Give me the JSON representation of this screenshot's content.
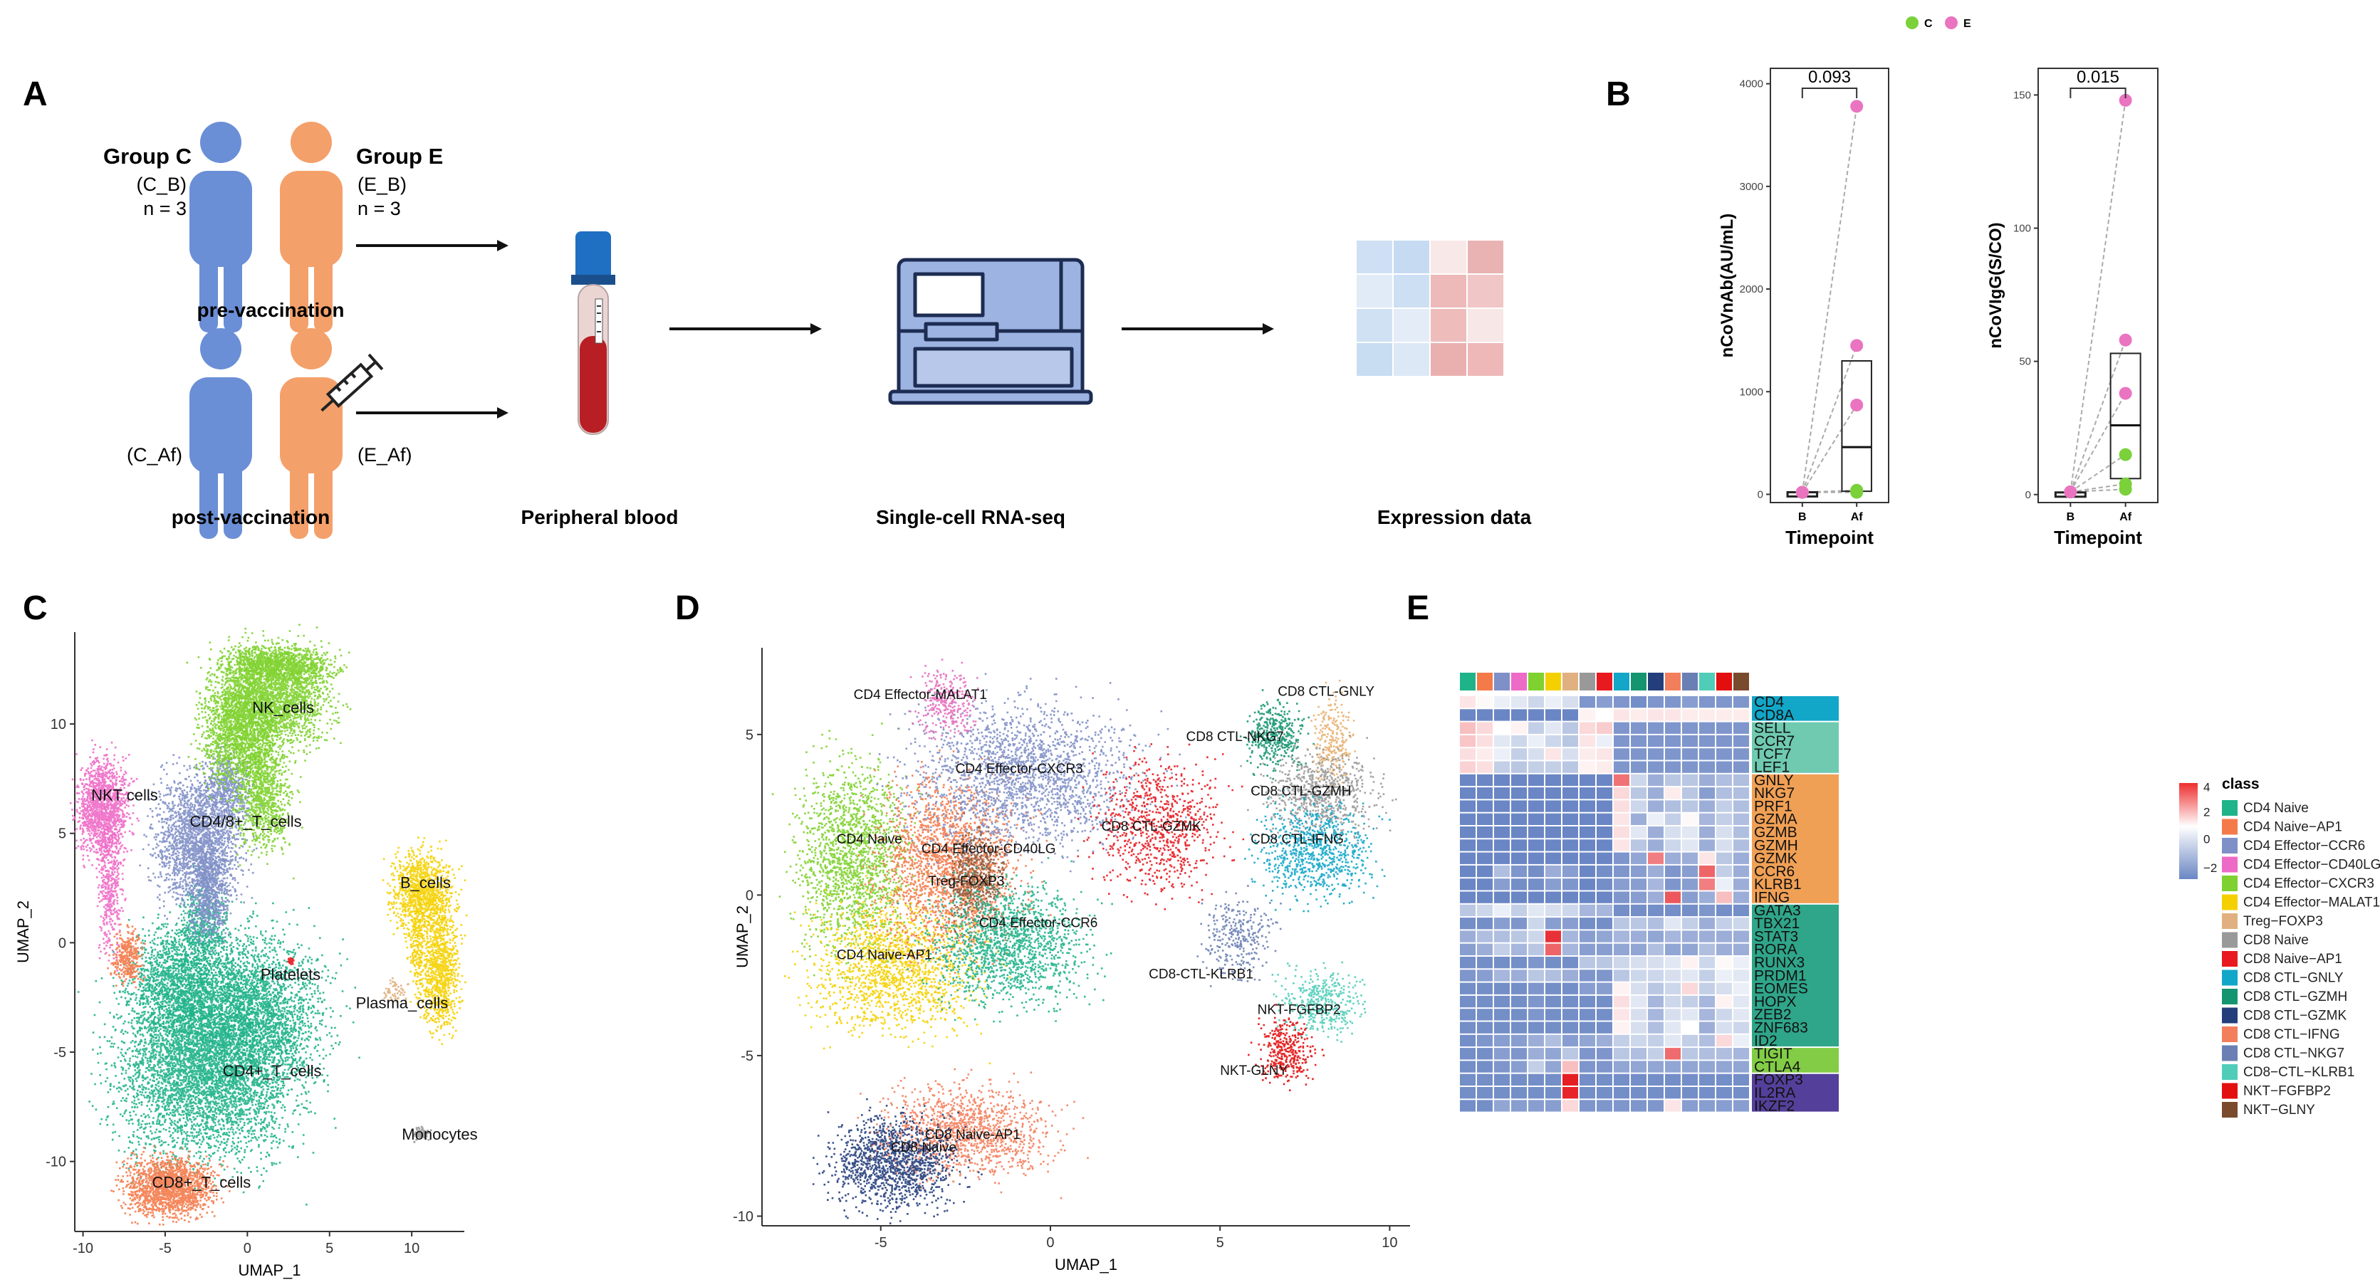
{
  "panels": {
    "A": {
      "label": "A",
      "group_c_title": "Group C",
      "group_c_code": "(C_B)",
      "group_c_n": "n = 3",
      "group_e_title": "Group E",
      "group_e_code": "(E_B)",
      "group_e_n": "n = 3",
      "pre_label": "pre-vaccination",
      "c_af": "(C_Af)",
      "e_af": "(E_Af)",
      "post_label": "post-vaccination",
      "blood_label": "Peripheral blood",
      "seq_label": "Single-cell RNA-seq",
      "expr_label": "Expression data"
    },
    "B": {
      "label": "B",
      "legend_items": [
        "C",
        "E"
      ],
      "xlabel": "Timepoint"
    },
    "C": {
      "label": "C"
    },
    "D": {
      "label": "D"
    },
    "E": {
      "label": "E"
    }
  },
  "colors": {
    "person_c": "#6b8fd6",
    "person_e": "#f4a06a",
    "group_c": "#7ad13a",
    "group_e": "#ea74c0",
    "box": "#222222"
  },
  "chart_data": [
    {
      "id": "B1",
      "type": "box-paired",
      "ylabel": "nCoVnAb(AU/mL)",
      "xlabel": "Timepoint",
      "categories": [
        "B",
        "Af"
      ],
      "ylim": [
        -80,
        4150
      ],
      "yticks": [
        0,
        1000,
        2000,
        3000,
        4000
      ],
      "pvalue": "0.093",
      "series": [
        {
          "name": "C",
          "values_B": [
            20,
            20,
            20
          ],
          "values_Af": [
            30,
            20,
            40
          ]
        },
        {
          "name": "E",
          "values_B": [
            20,
            20,
            20
          ],
          "values_Af": [
            3780,
            1450,
            870
          ]
        }
      ],
      "box_Af": {
        "q1": 30,
        "median": 460,
        "q3": 1300
      }
    },
    {
      "id": "B2",
      "type": "box-paired",
      "ylabel": "nCoVIgG(S/CO)",
      "xlabel": "Timepoint",
      "categories": [
        "B",
        "Af"
      ],
      "ylim": [
        -3,
        160
      ],
      "yticks": [
        0,
        50,
        100,
        150
      ],
      "pvalue": "0.015",
      "series": [
        {
          "name": "C",
          "values_B": [
            1,
            1,
            1
          ],
          "values_Af": [
            15,
            4,
            2
          ]
        },
        {
          "name": "E",
          "values_B": [
            1,
            1,
            1
          ],
          "values_Af": [
            148,
            58,
            38
          ]
        }
      ],
      "box_Af": {
        "q1": 6,
        "median": 26,
        "q3": 53
      }
    },
    {
      "id": "C",
      "type": "scatter-umap",
      "xlabel": "UMAP_1",
      "ylabel": "UMAP_2",
      "xlim": [
        -10.5,
        13.2
      ],
      "ylim": [
        -13.2,
        14.2
      ],
      "xticks": [
        -10,
        -5,
        0,
        5,
        10
      ],
      "yticks": [
        -10,
        -5,
        0,
        5,
        10
      ],
      "clusters": [
        {
          "name": "CD4+_T_cells",
          "color": "#1fb38a",
          "label_x": -1.5,
          "label_y": -6.1
        },
        {
          "name": "CD4/8+_T_cells",
          "color": "#7f8fc7",
          "label_x": -3.5,
          "label_y": 5.3
        },
        {
          "name": "NK_cells",
          "color": "#7ed12e",
          "label_x": 0.3,
          "label_y": 10.5
        },
        {
          "name": "NKT cells",
          "color": "#ee6ac7",
          "label_x": -9.5,
          "label_y": 6.5
        },
        {
          "name": "CD8+_T_cells",
          "color": "#f47a4a",
          "label_x": -5.8,
          "label_y": -11.2
        },
        {
          "name": "B_cells",
          "color": "#f5d000",
          "label_x": 9.3,
          "label_y": 2.5
        },
        {
          "name": "Plasma_cells",
          "color": "#e0b080",
          "label_x": 6.6,
          "label_y": -3.0
        },
        {
          "name": "Platelets",
          "color": "#e8191f",
          "label_x": 0.8,
          "label_y": -1.7
        },
        {
          "name": "Monocytes",
          "color": "#999999",
          "label_x": 9.4,
          "label_y": -9.0
        }
      ]
    },
    {
      "id": "D",
      "type": "scatter-umap",
      "xlabel": "UMAP_1",
      "ylabel": "UMAP_2",
      "xlim": [
        -8.5,
        10.6
      ],
      "ylim": [
        -10.3,
        7.7
      ],
      "xticks": [
        -5,
        0,
        5,
        10
      ],
      "yticks": [
        -10,
        -5,
        0,
        5
      ],
      "clusters": [
        {
          "name": "CD4 Effector-MALAT1",
          "color": "#e56fbc",
          "label_x": -5.8,
          "label_y": 6.1
        },
        {
          "name": "CD4 Effector-CXCR3",
          "color": "#7f8fc7",
          "label_x": -2.8,
          "label_y": 3.8
        },
        {
          "name": "CD4 Naive",
          "color": "#7ed12e",
          "label_x": -6.3,
          "label_y": 1.6
        },
        {
          "name": "CD4 Effector-CD40LG",
          "color": "#f47a4a",
          "label_x": -3.8,
          "label_y": 1.3
        },
        {
          "name": "Treg-FOXP3",
          "color": "#8b5a3c",
          "label_x": -3.6,
          "label_y": 0.3
        },
        {
          "name": "CD4 Effector-CCR6",
          "color": "#1fb38a",
          "label_x": -2.1,
          "label_y": -1.0
        },
        {
          "name": "CD4 Naive-AP1",
          "color": "#f5d000",
          "label_x": -6.3,
          "label_y": -2.0
        },
        {
          "name": "CD8 CTL-GNLY",
          "color": "#e8b070",
          "label_x": 6.7,
          "label_y": 6.2
        },
        {
          "name": "CD8 CTL-NKG7",
          "color": "#14956f",
          "label_x": 4.0,
          "label_y": 4.8
        },
        {
          "name": "CD8 CTL-GZMH",
          "color": "#999999",
          "label_x": 5.9,
          "label_y": 3.1
        },
        {
          "name": "CD8 CTL-GZMK",
          "color": "#e8191f",
          "label_x": 1.5,
          "label_y": 2.0
        },
        {
          "name": "CD8 CTL-IFNG",
          "color": "#12a6c8",
          "label_x": 5.9,
          "label_y": 1.6
        },
        {
          "name": "CD8-CTL-KLRB1",
          "color": "#6a7fb3",
          "label_x": 2.9,
          "label_y": -2.6
        },
        {
          "name": "NKT-FGFBP2",
          "color": "#4fcdb8",
          "label_x": 6.1,
          "label_y": -3.7
        },
        {
          "name": "NKT-GLNY",
          "color": "#e30e0e",
          "label_x": 5.0,
          "label_y": -5.6
        },
        {
          "name": "CD8 Naive-AP1",
          "color": "#f37e5c",
          "label_x": -3.7,
          "label_y": -7.6
        },
        {
          "name": "CD8 Naive",
          "color": "#243e7c",
          "label_x": -4.7,
          "label_y": -8.0
        }
      ]
    },
    {
      "id": "E",
      "type": "heatmap",
      "colorbar_ticks": [
        "4",
        "2",
        "0",
        "−2"
      ],
      "legend_title": "class",
      "genes": [
        "CD4",
        "CD8A",
        "SELL",
        "CCR7",
        "TCF7",
        "LEF1",
        "GNLY",
        "NKG7",
        "PRF1",
        "GZMA",
        "GZMB",
        "GZMH",
        "GZMK",
        "CCR6",
        "KLRB1",
        "IFNG",
        "GATA3",
        "TBX21",
        "STAT3",
        "RORA",
        "RUNX3",
        "PRDM1",
        "EOMES",
        "HOPX",
        "ZEB2",
        "ZNF683",
        "ID2",
        "TIGIT",
        "CTLA4",
        "FOXP3",
        "IL2RA",
        "IKZF2"
      ],
      "gene_groups": [
        {
          "rows": [
            0,
            1
          ],
          "color": "#12a6c8"
        },
        {
          "rows": [
            2,
            3,
            4,
            5
          ],
          "color": "#6fcab0"
        },
        {
          "rows": [
            6,
            7,
            8,
            9,
            10,
            11,
            12,
            13,
            14,
            15
          ],
          "color": "#f0a055"
        },
        {
          "rows": [
            16,
            17,
            18,
            19,
            20,
            21,
            22,
            23,
            24,
            25,
            26
          ],
          "color": "#2fa589"
        },
        {
          "rows": [
            27,
            28
          ],
          "color": "#82cd45"
        },
        {
          "rows": [
            29,
            30,
            31
          ],
          "color": "#54409a"
        }
      ],
      "classes": [
        {
          "name": "CD4 Naive",
          "color": "#1fb38a"
        },
        {
          "name": "CD4 Naive−AP1",
          "color": "#f47a4a"
        },
        {
          "name": "CD4 Effector−CCR6",
          "color": "#7f8fc7"
        },
        {
          "name": "CD4 Effector−CD40LG",
          "color": "#ee6ac7"
        },
        {
          "name": "CD4 Effector−CXCR3",
          "color": "#7ed12e"
        },
        {
          "name": "CD4 Effector−MALAT1",
          "color": "#f5d000"
        },
        {
          "name": "Treg−FOXP3",
          "color": "#e0b080"
        },
        {
          "name": "CD8 Naive",
          "color": "#999999"
        },
        {
          "name": "CD8 Naive−AP1",
          "color": "#e8191f"
        },
        {
          "name": "CD8 CTL−GNLY",
          "color": "#12a6c8"
        },
        {
          "name": "CD8 CTL−GZMH",
          "color": "#14956f"
        },
        {
          "name": "CD8 CTL−GZMK",
          "color": "#243e7c"
        },
        {
          "name": "CD8 CTL−IFNG",
          "color": "#f37e5c"
        },
        {
          "name": "CD8 CTL−NKG7",
          "color": "#6a7fb3"
        },
        {
          "name": "CD8−CTL−KLRB1",
          "color": "#4fcdb8"
        },
        {
          "name": "NKT−FGFBP2",
          "color": "#e30e0e"
        },
        {
          "name": "NKT−GLNY",
          "color": "#7a4a2c"
        }
      ],
      "matrix": [
        [
          0.4,
          0.1,
          -0.2,
          -0.3,
          -0.5,
          -0.2,
          -0.4,
          -1.3,
          -1.2,
          -1.3,
          -1.4,
          -1.3,
          -1.3,
          -1.2,
          -1.3,
          -1.3,
          -1.3
        ],
        [
          -1.6,
          -1.6,
          -1.5,
          -1.6,
          -1.6,
          -1.6,
          -1.6,
          0.2,
          0.0,
          0.4,
          0.3,
          0.4,
          0.4,
          0.3,
          0.3,
          0.3,
          0.3
        ],
        [
          1.0,
          0.6,
          0.0,
          0.2,
          -0.6,
          -0.3,
          -0.7,
          0.6,
          0.8,
          -1.3,
          -1.3,
          -1.3,
          -1.3,
          -1.3,
          -1.3,
          -1.3,
          -1.3
        ],
        [
          0.9,
          0.5,
          -0.3,
          -0.5,
          -0.2,
          -0.5,
          -0.7,
          0.4,
          -0.2,
          -1.3,
          -1.3,
          -1.3,
          -1.3,
          -1.3,
          -1.3,
          -1.3,
          -1.3
        ],
        [
          0.5,
          0.3,
          -0.2,
          -0.6,
          -0.4,
          0.4,
          -0.4,
          0.3,
          0.4,
          -1.3,
          -1.3,
          -1.3,
          -1.3,
          -1.3,
          -1.3,
          -1.3,
          -1.3
        ],
        [
          0.7,
          0.5,
          -0.6,
          -0.7,
          -0.6,
          -0.6,
          -0.7,
          0.2,
          0.3,
          -1.3,
          -1.3,
          -1.3,
          -1.3,
          -1.3,
          -1.3,
          -1.3,
          -1.3
        ],
        [
          -1.5,
          -1.5,
          -1.5,
          -1.5,
          -1.5,
          -1.5,
          -1.5,
          -1.5,
          -1.5,
          2.2,
          -0.5,
          -1.0,
          -0.7,
          -0.7,
          -1.0,
          -0.8,
          -0.8
        ],
        [
          -1.5,
          -1.5,
          -1.5,
          -1.5,
          -1.5,
          -1.5,
          -1.5,
          -1.5,
          -1.5,
          0.6,
          -0.7,
          -1.0,
          0.3,
          -0.7,
          -1.2,
          -0.8,
          -0.8
        ],
        [
          -1.5,
          -1.5,
          -1.5,
          -1.5,
          -1.5,
          -1.5,
          -1.5,
          -1.5,
          -1.5,
          0.5,
          -0.5,
          -1.0,
          -0.8,
          -0.7,
          -1.0,
          -0.6,
          -0.8
        ],
        [
          -1.5,
          -1.5,
          -1.5,
          -1.5,
          -1.5,
          -1.5,
          -1.5,
          -1.5,
          -1.5,
          0.4,
          -1.0,
          -0.2,
          -0.6,
          0.1,
          -0.9,
          -0.6,
          -0.8
        ],
        [
          -1.5,
          -1.5,
          -1.5,
          -1.5,
          -1.5,
          -1.5,
          -1.5,
          -1.5,
          -1.5,
          0.5,
          -0.3,
          -1.0,
          -0.4,
          -0.3,
          -1.0,
          -0.4,
          -0.8
        ],
        [
          -1.5,
          -1.5,
          -1.5,
          -1.5,
          -1.5,
          -1.5,
          -1.5,
          -1.5,
          -1.5,
          0.4,
          -0.7,
          -1.0,
          -0.5,
          -0.3,
          -1.0,
          -0.4,
          -0.8
        ],
        [
          -1.5,
          -1.5,
          -1.5,
          -1.5,
          -1.5,
          -1.5,
          -1.5,
          -1.5,
          -1.5,
          -1.3,
          -1.1,
          2.0,
          -1.0,
          -1.0,
          0.4,
          -0.7,
          -1.0
        ],
        [
          -1.5,
          -1.5,
          -0.8,
          -1.3,
          -1.4,
          -1.0,
          -1.2,
          -1.5,
          -1.4,
          -1.3,
          -1.2,
          -1.0,
          -1.3,
          -1.2,
          2.4,
          -0.6,
          -1.0
        ],
        [
          -1.5,
          -1.5,
          -1.2,
          -1.4,
          -1.4,
          -1.2,
          -1.3,
          -1.5,
          -1.4,
          -1.2,
          -1.2,
          -0.9,
          -1.3,
          -1.2,
          2.0,
          -0.2,
          -1.0
        ],
        [
          -1.5,
          -1.5,
          -1.5,
          -1.5,
          -1.5,
          -1.5,
          -1.5,
          -1.5,
          -1.5,
          -1.3,
          -1.2,
          -1.0,
          2.6,
          -1.2,
          -1.0,
          1.0,
          -1.0
        ],
        [
          -0.7,
          -0.5,
          -0.2,
          -0.6,
          -0.3,
          -0.4,
          -0.5,
          -0.9,
          -0.9,
          -1.4,
          -1.4,
          -1.4,
          -1.4,
          -1.4,
          -1.3,
          -1.4,
          -1.4
        ],
        [
          -1.4,
          -1.4,
          -1.2,
          -1.3,
          -0.5,
          -1.2,
          -1.2,
          -1.4,
          -1.4,
          -0.7,
          -0.7,
          -0.8,
          -0.3,
          -0.6,
          -1.0,
          -0.6,
          -0.5
        ],
        [
          -1.0,
          -0.8,
          -0.8,
          -0.7,
          -0.5,
          3.2,
          -0.9,
          -1.2,
          -1.1,
          -0.9,
          -1.0,
          -1.1,
          -0.9,
          -1.0,
          -1.0,
          -1.0,
          -1.0
        ],
        [
          -1.2,
          -1.0,
          -0.6,
          -0.9,
          -0.7,
          2.4,
          -0.9,
          -1.2,
          -1.2,
          -1.1,
          -1.1,
          -0.8,
          -1.1,
          -1.1,
          -0.8,
          -1.0,
          -1.0
        ],
        [
          -1.4,
          -1.4,
          -1.4,
          -1.4,
          -1.3,
          -1.4,
          -1.4,
          -0.7,
          -0.7,
          -0.5,
          -0.4,
          -0.4,
          -0.3,
          0.2,
          -0.5,
          0.1,
          -0.2
        ],
        [
          -1.3,
          -1.2,
          -0.9,
          -1.0,
          -0.7,
          -0.8,
          -1.0,
          -1.3,
          -1.3,
          -0.7,
          -0.5,
          -0.5,
          -0.4,
          -0.3,
          -0.6,
          -0.2,
          -0.3
        ],
        [
          -1.4,
          -1.4,
          -1.4,
          -1.4,
          -1.3,
          -1.4,
          -1.4,
          -1.2,
          -1.2,
          0.2,
          -0.4,
          -0.7,
          -0.5,
          0.6,
          -0.6,
          -0.4,
          -0.2
        ],
        [
          -1.4,
          -1.4,
          -1.4,
          -1.4,
          -1.3,
          -1.4,
          -1.4,
          -1.4,
          -1.4,
          0.5,
          -0.3,
          -0.9,
          -0.5,
          -0.6,
          -0.9,
          0.2,
          -0.3
        ],
        [
          -1.4,
          -1.4,
          -1.4,
          -1.4,
          -1.3,
          -1.4,
          -1.4,
          -1.4,
          -1.4,
          0.4,
          -0.4,
          -0.9,
          -0.4,
          -0.3,
          -0.9,
          -0.5,
          -0.3
        ],
        [
          -1.4,
          -1.4,
          -1.4,
          -1.4,
          -1.4,
          -1.4,
          -1.4,
          -1.4,
          -1.4,
          0.2,
          -0.4,
          -0.8,
          -0.3,
          0.0,
          -1.0,
          -0.4,
          -0.5
        ],
        [
          -1.4,
          -1.3,
          -1.2,
          -1.2,
          -1.0,
          -0.8,
          -1.2,
          -1.1,
          -1.0,
          -0.6,
          -0.5,
          -0.6,
          -0.3,
          -0.6,
          -0.8,
          0.6,
          -0.2
        ],
        [
          -1.4,
          -1.4,
          -1.2,
          -1.3,
          -1.0,
          -1.1,
          -0.7,
          -1.3,
          -1.3,
          -0.7,
          -0.8,
          -0.6,
          2.3,
          -0.7,
          -0.8,
          -0.8,
          -0.9
        ],
        [
          -1.4,
          -1.4,
          -1.3,
          -1.2,
          -0.6,
          -1.1,
          1.0,
          -1.3,
          -1.3,
          -1.1,
          -1.1,
          -1.1,
          -1.1,
          -1.1,
          -1.1,
          -1.1,
          -1.1
        ],
        [
          -1.4,
          -1.4,
          -1.4,
          -1.4,
          -1.4,
          -1.4,
          3.6,
          -1.4,
          -1.4,
          -1.4,
          -1.4,
          -1.4,
          -1.4,
          -1.4,
          -1.4,
          -1.4,
          -1.4
        ],
        [
          -1.4,
          -1.4,
          -1.4,
          -1.4,
          -1.4,
          -1.4,
          3.4,
          -1.4,
          -1.4,
          -1.4,
          -1.4,
          -1.4,
          -1.4,
          -1.4,
          -1.4,
          -1.4,
          -1.4
        ],
        [
          -1.4,
          -1.4,
          -1.1,
          -1.2,
          -1.2,
          -1.2,
          0.6,
          -1.3,
          -1.3,
          -1.3,
          -1.3,
          -1.3,
          0.4,
          -1.2,
          -1.2,
          -1.2,
          -1.2
        ]
      ]
    }
  ]
}
